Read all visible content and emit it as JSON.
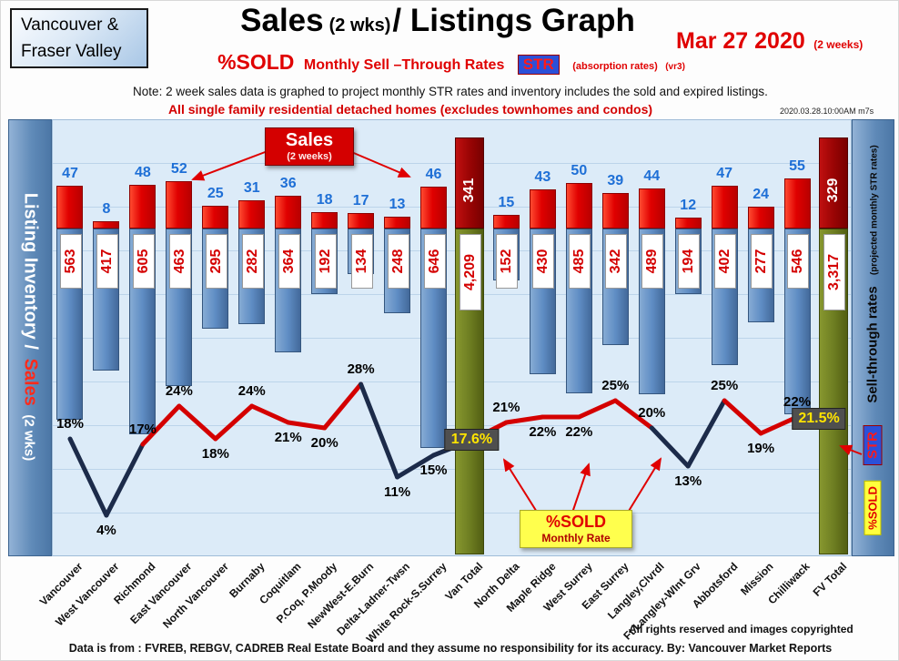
{
  "header": {
    "region_line1": "Vancouver &",
    "region_line2": "Fraser Valley",
    "title_sales": "Sales",
    "title_wks": "(2 wks)",
    "title_rest": "/ Listings Graph",
    "date": "Mar 27 2020",
    "date_note": "(2 weeks)",
    "subtitle_pctsold": "%SOLD",
    "subtitle_rates": "Monthly Sell –Through Rates",
    "str_badge": "STR",
    "subtitle_absorption": "(absorption rates)",
    "subtitle_version": "(vr3)",
    "note": "Note: 2 week sales data is graphed to project monthly STR rates and inventory includes the sold and expired listings.",
    "scope": "All single family residential detached homes (excludes townhomes and condos)",
    "timestamp": "2020.03.28.10:00AM m7s"
  },
  "left_axis": {
    "inventory": "Listing Inventory /",
    "sales": "Sales",
    "wks": "(2  wks)"
  },
  "right_axis": {
    "label": "Sell-through rates",
    "label_sub": "(projected monthly STR rates)",
    "str": "STR",
    "pctsold": "%SOLD"
  },
  "annotations": {
    "sales_title": "Sales",
    "sales_sub": "(2 weeks)",
    "pctsold_title": "%SOLD",
    "pctsold_sub": "Monthly Rate"
  },
  "footer": {
    "rights": "All rights reserved and  images copyrighted",
    "source": "Data is from : FVREB, REBGV, CADREB Real Estate Board and they assume no responsibility for its accuracy. By: Vancouver Market Reports"
  },
  "chart_data": {
    "type": "bar",
    "overlay": "line",
    "title": "Sales (2 wks)/ Listings Graph",
    "date": "Mar 27 2020 (2 weeks)",
    "categories": [
      "Vancouver",
      "West Vancouver",
      "Richmond",
      "East Vancouver",
      "North Vancouver",
      "Burnaby",
      "Coquitlam",
      "P.Coq,  P.Moody",
      "NewWest-E.Burn",
      "Delta-Ladner-Twsn",
      "White Rock-S.Surrey",
      "Van Total",
      "North Delta",
      "Maple Ridge",
      "West Surrey",
      "East Surrey",
      "Langley,Clvrdl",
      "Ft Langley-WInt Grv",
      "Abbotsford",
      "Mission",
      "Chilliwack",
      "FV Total"
    ],
    "series": [
      {
        "name": "Sales (2 weeks)",
        "type": "bar",
        "values": [
          47,
          8,
          48,
          52,
          25,
          31,
          36,
          18,
          17,
          13,
          46,
          341,
          15,
          43,
          50,
          39,
          44,
          12,
          47,
          24,
          55,
          329
        ]
      },
      {
        "name": "Listing Inventory (includes sold and expired)",
        "type": "bar",
        "values": [
          563,
          417,
          605,
          463,
          295,
          282,
          364,
          192,
          134,
          248,
          646,
          4209,
          152,
          430,
          485,
          342,
          489,
          194,
          402,
          277,
          546,
          3317
        ]
      },
      {
        "name": "%SOLD projected monthly STR rate",
        "type": "line",
        "values": [
          18,
          4,
          17,
          24,
          18,
          24,
          21,
          20,
          28,
          11,
          15,
          17.6,
          21,
          22,
          22,
          25,
          20,
          13,
          25,
          19,
          22,
          21.5
        ]
      }
    ],
    "total_indices": [
      11,
      21
    ],
    "pct_label_side": [
      "above",
      "below",
      "above",
      "above",
      "below",
      "above",
      "below",
      "below",
      "above",
      "below",
      "below",
      "box",
      "above",
      "below",
      "below",
      "above",
      "above",
      "below",
      "above",
      "below",
      "above",
      "box"
    ],
    "grid": "horizontal",
    "legend_position": "none",
    "ylim_pct": [
      0,
      30
    ],
    "colors": {
      "sales_bar": "#e01010",
      "sales_bar_total": "#9a0505",
      "inventory_bar": "#5f8dc4",
      "inventory_bar_total": "#6e7e22",
      "line": "#d40000",
      "line_dip": "#1c2b4a",
      "sales_value_text": "#1e6fd6",
      "inventory_value_text": "#d40000",
      "plot_bg": "#dcebf8",
      "pct_box_bg": "#4f4f4f",
      "pct_box_text": "#ffe400"
    }
  }
}
